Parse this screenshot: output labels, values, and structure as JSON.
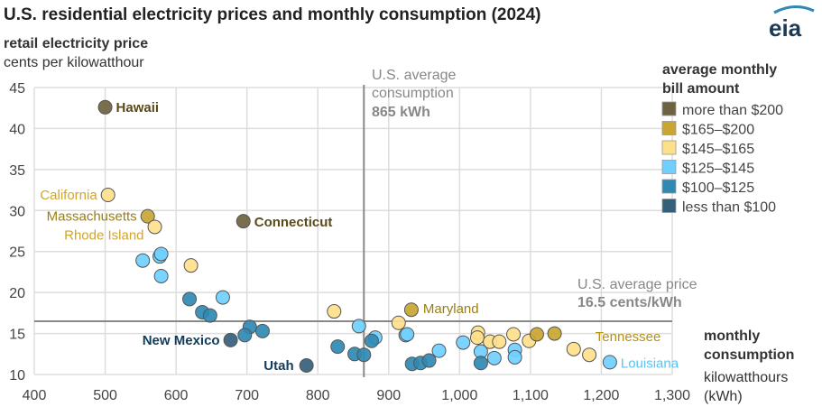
{
  "chart_data": {
    "type": "scatter",
    "title": "U.S. residential electricity prices and monthly consumption (2024)",
    "ylabel": "retail electricity price",
    "ylabel_unit": "cents per kilowatthour",
    "xlabel": "monthly consumption",
    "xlabel_unit_1": "kilowatthours",
    "xlabel_unit_2": "(kWh)",
    "xlim": [
      400,
      1300
    ],
    "ylim": [
      10,
      45
    ],
    "xticks": [
      "400",
      "500",
      "600",
      "700",
      "800",
      "900",
      "1,000",
      "1,100",
      "1,200",
      "1,300"
    ],
    "yticks": [
      "10",
      "15",
      "20",
      "25",
      "30",
      "35",
      "40",
      "45"
    ],
    "grid": true,
    "legend": {
      "title_1": "average monthly",
      "title_2": "bill amount",
      "placement": "right",
      "items": [
        {
          "key": "gt200",
          "label": "more than $200",
          "color": "#6e6340"
        },
        {
          "key": "165_200",
          "label": "$165–$200",
          "color": "#c9a531"
        },
        {
          "key": "145_165",
          "label": "$145–$165",
          "color": "#ffe08a"
        },
        {
          "key": "125_145",
          "label": "$125–$145",
          "color": "#6fd0ff"
        },
        {
          "key": "100_125",
          "label": "$100–$125",
          "color": "#2f89b3"
        },
        {
          "key": "lt100",
          "label": "less than $100",
          "color": "#356079"
        }
      ]
    },
    "reference_lines": {
      "avg_consumption": {
        "value": 865,
        "label_1": "U.S. average",
        "label_2": "consumption",
        "label_3": "865 kWh"
      },
      "avg_price": {
        "value": 16.5,
        "label_1": "U.S. average price",
        "label_2": "16.5 cents/kWh"
      }
    },
    "points": [
      {
        "x": 500,
        "y": 42.6,
        "bill": "gt200",
        "label": "Hawaii",
        "label_color": "#5a4a1a"
      },
      {
        "x": 504,
        "y": 31.9,
        "bill": "145_165",
        "label": "California",
        "label_color": "#d1a42a"
      },
      {
        "x": 560,
        "y": 29.3,
        "bill": "165_200",
        "label": "Massachusetts",
        "label_color": "#9b7d10"
      },
      {
        "x": 570,
        "y": 28.0,
        "bill": "145_165",
        "label": "Rhode Island",
        "label_color": "#d1a42a"
      },
      {
        "x": 695,
        "y": 28.7,
        "bill": "gt200",
        "label": "Connecticut",
        "label_color": "#5a4a1a"
      },
      {
        "x": 553,
        "y": 23.9,
        "bill": "125_145"
      },
      {
        "x": 577,
        "y": 24.4,
        "bill": "125_145"
      },
      {
        "x": 579,
        "y": 24.7,
        "bill": "125_145"
      },
      {
        "x": 579,
        "y": 22.0,
        "bill": "125_145"
      },
      {
        "x": 621,
        "y": 23.3,
        "bill": "145_165"
      },
      {
        "x": 619,
        "y": 19.2,
        "bill": "100_125"
      },
      {
        "x": 666,
        "y": 19.4,
        "bill": "125_145"
      },
      {
        "x": 637,
        "y": 17.6,
        "bill": "100_125"
      },
      {
        "x": 648,
        "y": 17.2,
        "bill": "100_125"
      },
      {
        "x": 704,
        "y": 15.8,
        "bill": "100_125"
      },
      {
        "x": 722,
        "y": 15.3,
        "bill": "100_125"
      },
      {
        "x": 697,
        "y": 14.8,
        "bill": "100_125"
      },
      {
        "x": 677,
        "y": 14.2,
        "bill": "lt100",
        "label": "New Mexico",
        "label_color": "#123d5a"
      },
      {
        "x": 784,
        "y": 11.1,
        "bill": "lt100",
        "label": "Utah",
        "label_color": "#123d5a"
      },
      {
        "x": 823,
        "y": 17.7,
        "bill": "145_165"
      },
      {
        "x": 858,
        "y": 15.9,
        "bill": "125_145"
      },
      {
        "x": 828,
        "y": 13.4,
        "bill": "100_125"
      },
      {
        "x": 852,
        "y": 12.5,
        "bill": "100_125"
      },
      {
        "x": 865,
        "y": 12.4,
        "bill": "100_125"
      },
      {
        "x": 881,
        "y": 14.5,
        "bill": "125_145"
      },
      {
        "x": 876,
        "y": 14.1,
        "bill": "100_125"
      },
      {
        "x": 914,
        "y": 16.3,
        "bill": "145_165"
      },
      {
        "x": 932,
        "y": 17.9,
        "bill": "165_200",
        "label": "Maryland",
        "label_color": "#9b7d10"
      },
      {
        "x": 924,
        "y": 14.8,
        "bill": "125_145"
      },
      {
        "x": 926,
        "y": 14.9,
        "bill": "125_145"
      },
      {
        "x": 933,
        "y": 11.3,
        "bill": "100_125"
      },
      {
        "x": 945,
        "y": 11.4,
        "bill": "100_125"
      },
      {
        "x": 957,
        "y": 11.7,
        "bill": "100_125"
      },
      {
        "x": 971,
        "y": 12.9,
        "bill": "125_145"
      },
      {
        "x": 1005,
        "y": 13.9,
        "bill": "125_145"
      },
      {
        "x": 1026,
        "y": 15.1,
        "bill": "145_165"
      },
      {
        "x": 1025,
        "y": 14.5,
        "bill": "145_165"
      },
      {
        "x": 1043,
        "y": 14.0,
        "bill": "145_165"
      },
      {
        "x": 1056,
        "y": 14.0,
        "bill": "145_165"
      },
      {
        "x": 1030,
        "y": 12.8,
        "bill": "125_145"
      },
      {
        "x": 1030,
        "y": 11.4,
        "bill": "100_125"
      },
      {
        "x": 1049,
        "y": 12.0,
        "bill": "125_145"
      },
      {
        "x": 1076,
        "y": 14.9,
        "bill": "145_165"
      },
      {
        "x": 1078,
        "y": 13.0,
        "bill": "125_145"
      },
      {
        "x": 1078,
        "y": 12.1,
        "bill": "125_145"
      },
      {
        "x": 1098,
        "y": 14.1,
        "bill": "145_165"
      },
      {
        "x": 1109,
        "y": 14.9,
        "bill": "165_200"
      },
      {
        "x": 1134,
        "y": 15.0,
        "bill": "165_200"
      },
      {
        "x": 1161,
        "y": 13.1,
        "bill": "145_165",
        "label": "Tennessee",
        "label_color": "#b8930c"
      },
      {
        "x": 1183,
        "y": 12.4,
        "bill": "145_165"
      },
      {
        "x": 1212,
        "y": 11.5,
        "bill": "125_145",
        "label": "Louisiana",
        "label_color": "#55c4f5"
      }
    ]
  },
  "logo": {
    "text": "eia"
  }
}
